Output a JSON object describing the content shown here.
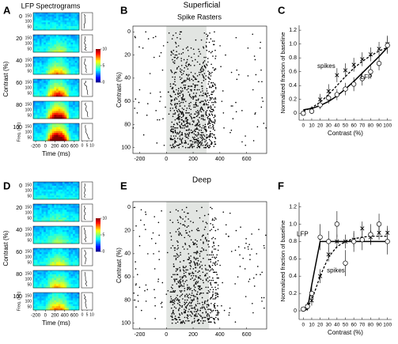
{
  "headings": [
    "Superficial",
    "Deep"
  ],
  "chart_data": [
    {
      "type": "spectrogram",
      "panel": "A",
      "title": "LFP Spectrograms",
      "categories": [
        0,
        20,
        40,
        60,
        80,
        100
      ],
      "y_label": "Contrast (%)",
      "x_label": "Time (ms)",
      "xlim": [
        -250,
        700
      ],
      "xticks": [
        -200,
        0,
        200,
        400,
        600
      ],
      "freq_label": "Freq. (Hz)",
      "freq_ticks": [
        150,
        100,
        50
      ],
      "colorbar_ticks": [
        10,
        5,
        0
      ],
      "profile_ticks": [
        0,
        5,
        10
      ]
    },
    {
      "type": "raster",
      "panel": "B",
      "title": "Spike Rasters",
      "y_label": "Contrast (%)",
      "ylim": [
        -5,
        105
      ],
      "yticks": [
        0,
        20,
        40,
        60,
        80,
        100
      ],
      "xlim": [
        -250,
        750
      ],
      "xticks": [
        -200,
        0,
        200,
        400,
        600
      ],
      "stimulus": [
        0,
        300
      ]
    },
    {
      "type": "line",
      "panel": "C",
      "x_label": "Contrast (%)",
      "y_label": "Normalized fraction of baseline",
      "xlim": [
        -5,
        105
      ],
      "ylim": [
        -0.1,
        1.27
      ],
      "xticks": [
        0,
        10,
        20,
        30,
        40,
        50,
        60,
        70,
        80,
        90,
        100
      ],
      "yticks": [
        0,
        0.2,
        0.4,
        0.6,
        0.8,
        {
          "value": 1,
          "label": "1.0"
        },
        1.2
      ],
      "x": [
        0,
        10,
        20,
        30,
        40,
        50,
        60,
        70,
        80,
        90,
        100
      ],
      "series": [
        {
          "name": "spikes",
          "color": "#000000",
          "marker": "x",
          "line_style": "dashed",
          "values": [
            0,
            0.05,
            0.2,
            0.32,
            0.55,
            0.62,
            0.7,
            0.78,
            0.85,
            0.93,
            1.0
          ],
          "errors": [
            0.03,
            0.05,
            0.08,
            0.1,
            0.1,
            0.1,
            0.1,
            0.1,
            0.1,
            0.1,
            0.12
          ],
          "fit": [
            0.03,
            0.08,
            0.16,
            0.27,
            0.4,
            0.53,
            0.65,
            0.75,
            0.83,
            0.9,
            0.95
          ]
        },
        {
          "name": "LFP",
          "color": "#000000",
          "marker": "o",
          "line_style": "solid",
          "values": [
            0,
            0.03,
            0.12,
            0.22,
            0.27,
            0.35,
            0.42,
            0.5,
            0.6,
            0.72,
            0.98
          ],
          "errors": [
            0.03,
            0.04,
            0.06,
            0.08,
            0.08,
            0.09,
            0.1,
            0.1,
            0.1,
            0.1,
            0.12
          ],
          "fit": [
            0.05,
            0.07,
            0.11,
            0.17,
            0.25,
            0.35,
            0.46,
            0.58,
            0.7,
            0.82,
            0.95
          ]
        }
      ]
    },
    {
      "type": "spectrogram",
      "panel": "D",
      "categories": [
        0,
        20,
        40,
        60,
        80,
        100
      ],
      "y_label": "Contrast (%)",
      "x_label": "Time (ms)",
      "xlim": [
        -250,
        700
      ],
      "xticks": [
        -200,
        0,
        200,
        400,
        600
      ],
      "freq_label": "Freq. (Hz)",
      "freq_ticks": [
        150,
        100,
        50
      ],
      "colorbar_ticks": [
        10,
        5,
        0
      ],
      "profile_ticks": [
        0,
        5,
        10
      ]
    },
    {
      "type": "raster",
      "panel": "E",
      "y_label": "Contrast (%)",
      "ylim": [
        -5,
        105
      ],
      "yticks": [
        0,
        20,
        40,
        60,
        80,
        100
      ],
      "xlim": [
        -250,
        750
      ],
      "xticks": [
        -200,
        0,
        200,
        400,
        600
      ],
      "stimulus": [
        0,
        320
      ]
    },
    {
      "type": "line",
      "panel": "F",
      "x_label": "Contrast (%)",
      "y_label": "Normalized fraction of baseline",
      "xlim": [
        -5,
        105
      ],
      "ylim": [
        -0.1,
        1.25
      ],
      "xticks": [
        0,
        10,
        20,
        30,
        40,
        50,
        60,
        70,
        80,
        90,
        100
      ],
      "yticks": [
        0,
        0.2,
        0.4,
        0.6,
        0.8,
        {
          "value": 1,
          "label": "1.0"
        },
        1.2
      ],
      "x": [
        0,
        5,
        10,
        20,
        30,
        40,
        50,
        60,
        70,
        80,
        90,
        100
      ],
      "series": [
        {
          "name": "spikes",
          "color": "#000000",
          "marker": "x",
          "line_style": "dashed",
          "values": [
            0.02,
            0.05,
            0.12,
            0.4,
            0.65,
            0.8,
            0.8,
            0.82,
            0.95,
            0.85,
            0.9,
            0.9
          ],
          "errors": [
            0.03,
            0.04,
            0.06,
            0.08,
            0.08,
            0.08,
            0.08,
            0.08,
            0.08,
            0.08,
            0.08,
            0.08
          ],
          "fit": [
            0,
            0.05,
            0.12,
            0.4,
            0.62,
            0.74,
            0.8,
            0.83,
            0.85,
            0.86,
            0.86,
            0.86
          ]
        },
        {
          "name": "LFP",
          "color": "#000000",
          "marker": "o",
          "line_style": "solid",
          "values": [
            0.02,
            0.05,
            0.2,
            0.85,
            0.8,
            1.0,
            0.55,
            0.8,
            0.82,
            0.88,
            1.0,
            0.8
          ],
          "errors": [
            0.03,
            0.05,
            0.1,
            0.15,
            0.12,
            0.15,
            0.15,
            0.12,
            0.12,
            0.12,
            0.12,
            0.15
          ],
          "fit": [
            0,
            0.02,
            0.3,
            0.8,
            0.8,
            0.8,
            0.8,
            0.8,
            0.8,
            0.8,
            0.8,
            0.8
          ]
        }
      ]
    }
  ]
}
